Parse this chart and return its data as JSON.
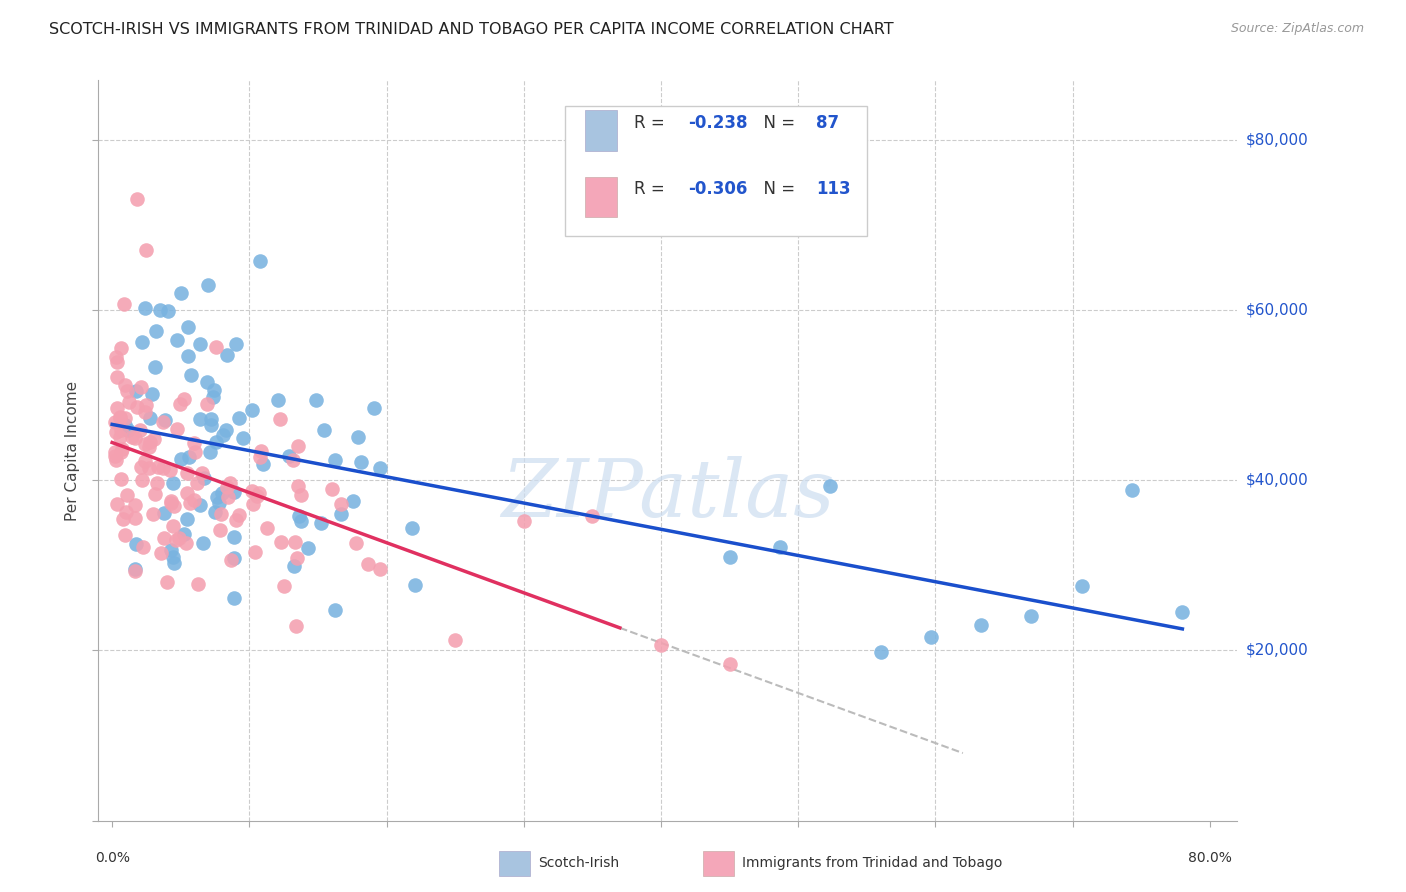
{
  "title": "SCOTCH-IRISH VS IMMIGRANTS FROM TRINIDAD AND TOBAGO PER CAPITA INCOME CORRELATION CHART",
  "source": "Source: ZipAtlas.com",
  "ylabel": "Per Capita Income",
  "ytick_labels": [
    "$20,000",
    "$40,000",
    "$60,000",
    "$80,000"
  ],
  "ytick_values": [
    20000,
    40000,
    60000,
    80000
  ],
  "legend1_face": "#a8c4e0",
  "legend2_face": "#f4a7b9",
  "legend1_label": "Scotch-Irish",
  "legend2_label": "Immigrants from Trinidad and Tobago",
  "R1": "-0.238",
  "N1": "87",
  "R2": "-0.306",
  "N2": "113",
  "blue_dot_color": "#7ab3e0",
  "pink_dot_color": "#f4a0b0",
  "blue_line_color": "#1a4fcc",
  "pink_line_color": "#e03060",
  "dash_line_color": "#bbbbbb",
  "watermark": "ZIPatlas",
  "watermark_color": "#ccddf0",
  "title_color": "#222222",
  "source_color": "#999999",
  "grid_color": "#cccccc",
  "axis_label_color": "#2255cc",
  "ylabel_color": "#444444"
}
